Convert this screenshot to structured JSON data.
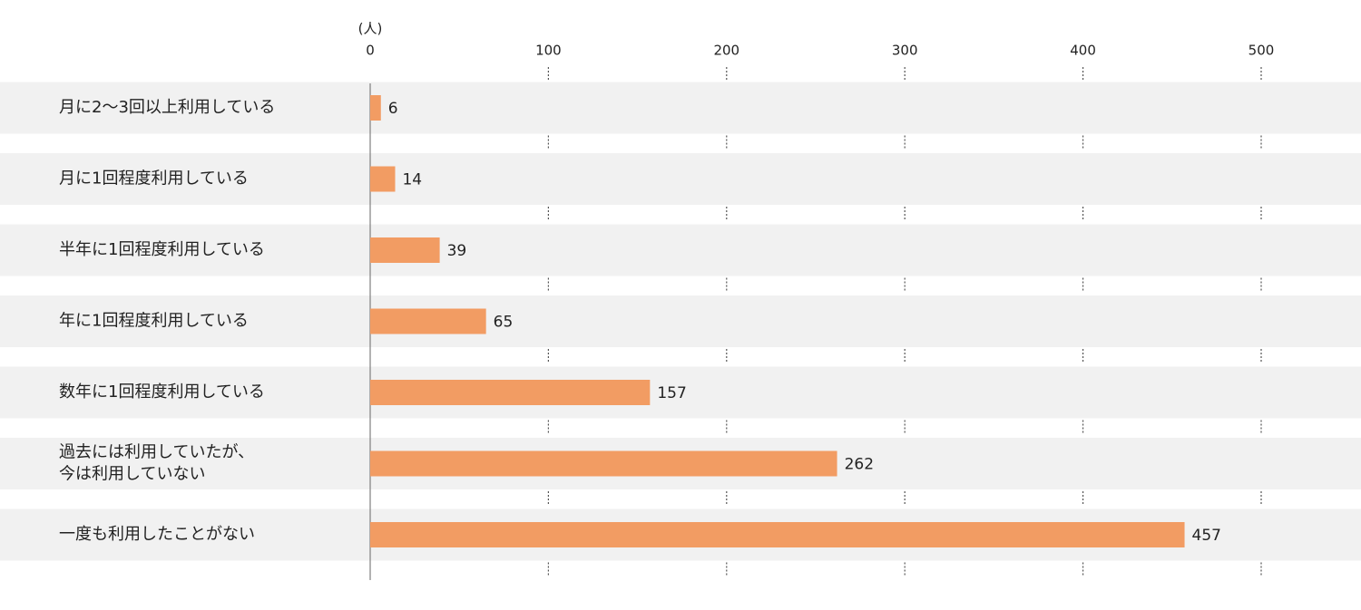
{
  "chart_data": {
    "type": "bar",
    "orientation": "horizontal",
    "unit_label": "(人)",
    "categories": [
      "月に2〜3回以上利用している",
      "月に1回程度利用している",
      "半年に1回程度利用している",
      "年に1回程度利用している",
      "数年に1回程度利用している",
      "過去には利用していたが、\n今は利用していない",
      "一度も利用したことがない"
    ],
    "values": [
      6,
      14,
      39,
      65,
      157,
      262,
      457
    ],
    "color": "#f29c63",
    "xlim": [
      0,
      500
    ],
    "xticks": [
      0,
      100,
      200,
      300,
      400,
      500
    ],
    "grid": true
  }
}
